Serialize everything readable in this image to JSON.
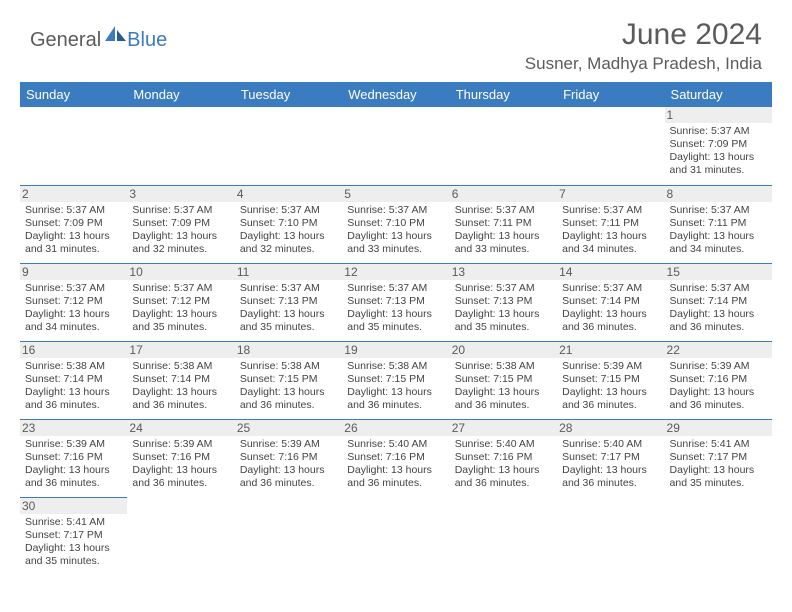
{
  "logo": {
    "general": "General",
    "blue": "Blue"
  },
  "title": "June 2024",
  "location": "Susner, Madhya Pradesh, India",
  "colors": {
    "header_bg": "#3b7bbf",
    "header_text": "#ffffff",
    "day_strip_bg": "#eeeeee",
    "text_gray": "#5b5b5b",
    "border": "#3b7bbf"
  },
  "weekdays": [
    "Sunday",
    "Monday",
    "Tuesday",
    "Wednesday",
    "Thursday",
    "Friday",
    "Saturday"
  ],
  "weeks": [
    [
      {
        "n": "",
        "sr": "",
        "ss": "",
        "dl": ""
      },
      {
        "n": "",
        "sr": "",
        "ss": "",
        "dl": ""
      },
      {
        "n": "",
        "sr": "",
        "ss": "",
        "dl": ""
      },
      {
        "n": "",
        "sr": "",
        "ss": "",
        "dl": ""
      },
      {
        "n": "",
        "sr": "",
        "ss": "",
        "dl": ""
      },
      {
        "n": "",
        "sr": "",
        "ss": "",
        "dl": ""
      },
      {
        "n": "1",
        "sr": "Sunrise: 5:37 AM",
        "ss": "Sunset: 7:09 PM",
        "dl": "Daylight: 13 hours and 31 minutes."
      }
    ],
    [
      {
        "n": "2",
        "sr": "Sunrise: 5:37 AM",
        "ss": "Sunset: 7:09 PM",
        "dl": "Daylight: 13 hours and 31 minutes."
      },
      {
        "n": "3",
        "sr": "Sunrise: 5:37 AM",
        "ss": "Sunset: 7:09 PM",
        "dl": "Daylight: 13 hours and 32 minutes."
      },
      {
        "n": "4",
        "sr": "Sunrise: 5:37 AM",
        "ss": "Sunset: 7:10 PM",
        "dl": "Daylight: 13 hours and 32 minutes."
      },
      {
        "n": "5",
        "sr": "Sunrise: 5:37 AM",
        "ss": "Sunset: 7:10 PM",
        "dl": "Daylight: 13 hours and 33 minutes."
      },
      {
        "n": "6",
        "sr": "Sunrise: 5:37 AM",
        "ss": "Sunset: 7:11 PM",
        "dl": "Daylight: 13 hours and 33 minutes."
      },
      {
        "n": "7",
        "sr": "Sunrise: 5:37 AM",
        "ss": "Sunset: 7:11 PM",
        "dl": "Daylight: 13 hours and 34 minutes."
      },
      {
        "n": "8",
        "sr": "Sunrise: 5:37 AM",
        "ss": "Sunset: 7:11 PM",
        "dl": "Daylight: 13 hours and 34 minutes."
      }
    ],
    [
      {
        "n": "9",
        "sr": "Sunrise: 5:37 AM",
        "ss": "Sunset: 7:12 PM",
        "dl": "Daylight: 13 hours and 34 minutes."
      },
      {
        "n": "10",
        "sr": "Sunrise: 5:37 AM",
        "ss": "Sunset: 7:12 PM",
        "dl": "Daylight: 13 hours and 35 minutes."
      },
      {
        "n": "11",
        "sr": "Sunrise: 5:37 AM",
        "ss": "Sunset: 7:13 PM",
        "dl": "Daylight: 13 hours and 35 minutes."
      },
      {
        "n": "12",
        "sr": "Sunrise: 5:37 AM",
        "ss": "Sunset: 7:13 PM",
        "dl": "Daylight: 13 hours and 35 minutes."
      },
      {
        "n": "13",
        "sr": "Sunrise: 5:37 AM",
        "ss": "Sunset: 7:13 PM",
        "dl": "Daylight: 13 hours and 35 minutes."
      },
      {
        "n": "14",
        "sr": "Sunrise: 5:37 AM",
        "ss": "Sunset: 7:14 PM",
        "dl": "Daylight: 13 hours and 36 minutes."
      },
      {
        "n": "15",
        "sr": "Sunrise: 5:37 AM",
        "ss": "Sunset: 7:14 PM",
        "dl": "Daylight: 13 hours and 36 minutes."
      }
    ],
    [
      {
        "n": "16",
        "sr": "Sunrise: 5:38 AM",
        "ss": "Sunset: 7:14 PM",
        "dl": "Daylight: 13 hours and 36 minutes."
      },
      {
        "n": "17",
        "sr": "Sunrise: 5:38 AM",
        "ss": "Sunset: 7:14 PM",
        "dl": "Daylight: 13 hours and 36 minutes."
      },
      {
        "n": "18",
        "sr": "Sunrise: 5:38 AM",
        "ss": "Sunset: 7:15 PM",
        "dl": "Daylight: 13 hours and 36 minutes."
      },
      {
        "n": "19",
        "sr": "Sunrise: 5:38 AM",
        "ss": "Sunset: 7:15 PM",
        "dl": "Daylight: 13 hours and 36 minutes."
      },
      {
        "n": "20",
        "sr": "Sunrise: 5:38 AM",
        "ss": "Sunset: 7:15 PM",
        "dl": "Daylight: 13 hours and 36 minutes."
      },
      {
        "n": "21",
        "sr": "Sunrise: 5:39 AM",
        "ss": "Sunset: 7:15 PM",
        "dl": "Daylight: 13 hours and 36 minutes."
      },
      {
        "n": "22",
        "sr": "Sunrise: 5:39 AM",
        "ss": "Sunset: 7:16 PM",
        "dl": "Daylight: 13 hours and 36 minutes."
      }
    ],
    [
      {
        "n": "23",
        "sr": "Sunrise: 5:39 AM",
        "ss": "Sunset: 7:16 PM",
        "dl": "Daylight: 13 hours and 36 minutes."
      },
      {
        "n": "24",
        "sr": "Sunrise: 5:39 AM",
        "ss": "Sunset: 7:16 PM",
        "dl": "Daylight: 13 hours and 36 minutes."
      },
      {
        "n": "25",
        "sr": "Sunrise: 5:39 AM",
        "ss": "Sunset: 7:16 PM",
        "dl": "Daylight: 13 hours and 36 minutes."
      },
      {
        "n": "26",
        "sr": "Sunrise: 5:40 AM",
        "ss": "Sunset: 7:16 PM",
        "dl": "Daylight: 13 hours and 36 minutes."
      },
      {
        "n": "27",
        "sr": "Sunrise: 5:40 AM",
        "ss": "Sunset: 7:16 PM",
        "dl": "Daylight: 13 hours and 36 minutes."
      },
      {
        "n": "28",
        "sr": "Sunrise: 5:40 AM",
        "ss": "Sunset: 7:17 PM",
        "dl": "Daylight: 13 hours and 36 minutes."
      },
      {
        "n": "29",
        "sr": "Sunrise: 5:41 AM",
        "ss": "Sunset: 7:17 PM",
        "dl": "Daylight: 13 hours and 35 minutes."
      }
    ],
    [
      {
        "n": "30",
        "sr": "Sunrise: 5:41 AM",
        "ss": "Sunset: 7:17 PM",
        "dl": "Daylight: 13 hours and 35 minutes."
      },
      {
        "n": "",
        "sr": "",
        "ss": "",
        "dl": ""
      },
      {
        "n": "",
        "sr": "",
        "ss": "",
        "dl": ""
      },
      {
        "n": "",
        "sr": "",
        "ss": "",
        "dl": ""
      },
      {
        "n": "",
        "sr": "",
        "ss": "",
        "dl": ""
      },
      {
        "n": "",
        "sr": "",
        "ss": "",
        "dl": ""
      },
      {
        "n": "",
        "sr": "",
        "ss": "",
        "dl": ""
      }
    ]
  ]
}
